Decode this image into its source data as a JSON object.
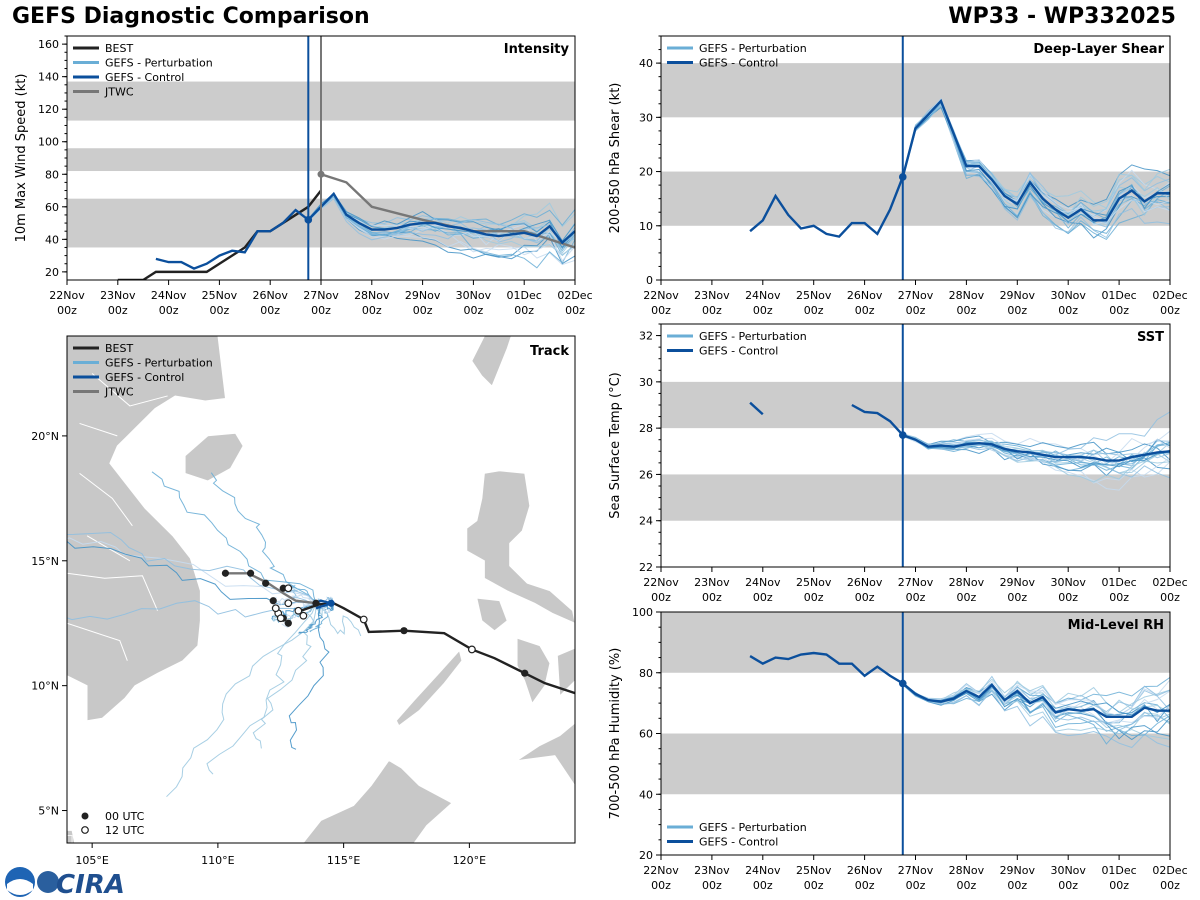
{
  "header": {
    "title_left": "GEFS Diagnostic Comparison",
    "title_right": "WP33 - WP332025"
  },
  "colors": {
    "best": "#222222",
    "perturbation": "#6aaed6",
    "control": "#0b4f9c",
    "jtwc": "#777777",
    "band": "#cccccc",
    "land": "#c8c8c8"
  },
  "time_axis": {
    "ticks": [
      {
        "day": 0,
        "line1": "22Nov",
        "line2": "00z"
      },
      {
        "day": 1,
        "line1": "23Nov",
        "line2": "00z"
      },
      {
        "day": 2,
        "line1": "24Nov",
        "line2": "00z"
      },
      {
        "day": 3,
        "line1": "25Nov",
        "line2": "00z"
      },
      {
        "day": 4,
        "line1": "26Nov",
        "line2": "00z"
      },
      {
        "day": 5,
        "line1": "27Nov",
        "line2": "00z"
      },
      {
        "day": 6,
        "line1": "28Nov",
        "line2": "00z"
      },
      {
        "day": 7,
        "line1": "29Nov",
        "line2": "00z"
      },
      {
        "day": 8,
        "line1": "30Nov",
        "line2": "00z"
      },
      {
        "day": 9,
        "line1": "01Dec",
        "line2": "00z"
      },
      {
        "day": 10,
        "line1": "02Dec",
        "line2": "00z"
      }
    ],
    "init_day": 4.75,
    "jtwc_day": 5.0
  },
  "chart_data": [
    {
      "id": "intensity",
      "type": "line",
      "title": "Intensity",
      "ylabel": "10m Max Wind Speed (kt)",
      "ylim": [
        15,
        165
      ],
      "yticks": [
        20,
        40,
        60,
        80,
        100,
        120,
        140,
        160
      ],
      "bands": [
        [
          35,
          65
        ],
        [
          82,
          96
        ],
        [
          113,
          137
        ]
      ],
      "legend": [
        "BEST",
        "GEFS - Perturbation",
        "GEFS - Control",
        "JTWC"
      ],
      "best": {
        "x": [
          1.0,
          1.25,
          1.5,
          1.75,
          2.0,
          2.25,
          2.5,
          2.75,
          3.0,
          3.25,
          3.5,
          3.75,
          4.0,
          4.25,
          4.5,
          4.75,
          5.0
        ],
        "y": [
          15,
          15,
          15,
          20,
          20,
          20,
          20,
          20,
          25,
          30,
          35,
          45,
          45,
          50,
          55,
          60,
          70
        ]
      },
      "jtwc": {
        "x": [
          5.0,
          5.5,
          6.0,
          7.0,
          8.0,
          9.0,
          10.0
        ],
        "y": [
          80,
          75,
          60,
          52,
          45,
          45,
          35
        ]
      },
      "control": {
        "x": [
          1.75,
          2.0,
          2.25,
          2.5,
          2.75,
          3.0,
          3.25,
          3.5,
          3.75,
          4.0,
          4.25,
          4.5,
          4.75,
          5.0,
          5.25,
          5.5,
          5.75,
          6.0,
          6.25,
          6.5,
          6.75,
          7.0,
          7.25,
          7.5,
          7.75,
          8.0,
          8.25,
          8.5,
          8.75,
          9.0,
          9.25,
          9.5,
          9.75,
          10.0
        ],
        "y": [
          28,
          26,
          26,
          22,
          25,
          30,
          33,
          32,
          45,
          45,
          50,
          58,
          52,
          60,
          68,
          55,
          50,
          46,
          46,
          47,
          49,
          50,
          50,
          48,
          47,
          45,
          43,
          42,
          43,
          44,
          42,
          48,
          38,
          45
        ]
      },
      "perturbation_count": 20,
      "perturbation_range": [
        20,
        68
      ]
    },
    {
      "id": "shear",
      "type": "line",
      "title": "Deep-Layer Shear",
      "ylabel": "200-850 hPa Shear (kt)",
      "ylim": [
        0,
        45
      ],
      "yticks": [
        0,
        10,
        20,
        30,
        40
      ],
      "bands": [
        [
          10,
          20
        ],
        [
          30,
          40
        ]
      ],
      "legend": [
        "GEFS - Perturbation",
        "GEFS - Control"
      ],
      "control": {
        "x": [
          1.75,
          2.0,
          2.25,
          2.5,
          2.75,
          3.0,
          3.25,
          3.5,
          3.75,
          4.0,
          4.25,
          4.5,
          4.75,
          5.0,
          5.25,
          5.5,
          5.75,
          6.0,
          6.25,
          6.5,
          6.75,
          7.0,
          7.25,
          7.5,
          7.75,
          8.0,
          8.25,
          8.5,
          8.75,
          9.0,
          9.25,
          9.5,
          9.75,
          10.0
        ],
        "y": [
          9,
          11,
          15.5,
          12,
          9.5,
          10,
          8.5,
          8,
          10.5,
          10.5,
          8.5,
          13,
          19,
          28,
          30.5,
          33,
          27,
          21,
          21,
          18.5,
          15.5,
          14,
          18,
          15,
          13,
          11.5,
          13,
          11,
          11,
          15,
          16.5,
          14.5,
          16,
          16
        ]
      },
      "perturbation_count": 20
    },
    {
      "id": "sst",
      "type": "line",
      "title": "SST",
      "ylabel": "Sea Surface Temp (°C)",
      "ylim": [
        22,
        32.5
      ],
      "yticks": [
        22,
        24,
        26,
        28,
        30,
        32
      ],
      "bands": [
        [
          24,
          26
        ],
        [
          28,
          30
        ]
      ],
      "legend": [
        "GEFS - Perturbation",
        "GEFS - Control"
      ],
      "control_pre1": {
        "x": [
          1.75,
          2.0
        ],
        "y": [
          29.1,
          28.6
        ]
      },
      "control": {
        "x": [
          3.75,
          4.0,
          4.25,
          4.5,
          4.75,
          5.0,
          5.25,
          5.5,
          5.75,
          6.0,
          6.25,
          6.5,
          6.75,
          7.0,
          7.25,
          7.5,
          7.75,
          8.0,
          8.25,
          8.5,
          8.75,
          9.0,
          9.25,
          9.5,
          9.75,
          10.0
        ],
        "y": [
          29.0,
          28.7,
          28.65,
          28.3,
          27.7,
          27.5,
          27.2,
          27.25,
          27.2,
          27.3,
          27.35,
          27.3,
          27.1,
          27.0,
          26.95,
          26.85,
          26.75,
          26.75,
          26.75,
          26.7,
          26.6,
          26.6,
          26.75,
          26.85,
          26.95,
          27.0
        ]
      },
      "perturbation_count": 20
    },
    {
      "id": "rh",
      "type": "line",
      "title": "Mid-Level RH",
      "ylabel": "700-500 hPa Humidity (%)",
      "ylim": [
        20,
        100
      ],
      "yticks": [
        20,
        40,
        60,
        80,
        100
      ],
      "bands": [
        [
          40,
          60
        ],
        [
          80,
          100
        ]
      ],
      "legend": [
        "GEFS - Perturbation",
        "GEFS - Control"
      ],
      "control": {
        "x": [
          1.75,
          2.0,
          2.25,
          2.5,
          2.75,
          3.0,
          3.25,
          3.5,
          3.75,
          4.0,
          4.25,
          4.5,
          4.75,
          5.0,
          5.25,
          5.5,
          5.75,
          6.0,
          6.25,
          6.5,
          6.75,
          7.0,
          7.25,
          7.5,
          7.75,
          8.0,
          8.25,
          8.5,
          8.75,
          9.0,
          9.25,
          9.5,
          9.75,
          10.0
        ],
        "y": [
          85.5,
          83,
          85,
          84.5,
          86,
          86.5,
          86,
          83,
          83,
          79,
          82,
          79,
          76.5,
          73,
          71,
          70.5,
          71.5,
          74,
          72,
          76,
          71,
          74,
          70,
          72,
          67,
          68,
          67.5,
          68,
          65.5,
          65.5,
          65.5,
          68.5,
          67.5,
          67.5
        ]
      },
      "perturbation_count": 20
    },
    {
      "id": "track",
      "type": "scatter",
      "title": "Track",
      "xlim": [
        104,
        124.2
      ],
      "ylim": [
        3.7,
        24
      ],
      "xticks": [
        {
          "v": 105,
          "label": "105°E"
        },
        {
          "v": 110,
          "label": "110°E"
        },
        {
          "v": 115,
          "label": "115°E"
        },
        {
          "v": 120,
          "label": "120°E"
        }
      ],
      "yticks": [
        {
          "v": 5,
          "label": "5°N"
        },
        {
          "v": 10,
          "label": "10°N"
        },
        {
          "v": 15,
          "label": "15°N"
        },
        {
          "v": 20,
          "label": "20°N"
        }
      ],
      "legend": [
        "BEST",
        "GEFS - Perturbation",
        "GEFS - Control",
        "JTWC"
      ],
      "marker_legend": [
        "00 UTC",
        "12 UTC"
      ],
      "best_track": {
        "lon": [
          124.2,
          123.0,
          122.2,
          121.0,
          120.1,
          119.0,
          117.4,
          116.0,
          115.8,
          115.0,
          114.6,
          114.0,
          113.3
        ],
        "lat": [
          9.7,
          10.1,
          10.5,
          11.1,
          11.45,
          12.1,
          12.2,
          12.15,
          12.65,
          13.1,
          13.3,
          13.25,
          13.0
        ]
      },
      "best_00": {
        "lon": [
          122.2,
          117.4,
          113.9,
          112.6,
          112.8,
          112.6,
          112.2,
          111.9,
          111.3,
          110.3
        ],
        "lat": [
          10.5,
          12.2,
          13.3,
          12.7,
          12.5,
          13.9,
          13.4,
          14.1,
          14.5,
          14.5
        ]
      },
      "best_12": {
        "lon": [
          120.1,
          115.8,
          113.4,
          113.2,
          112.4,
          112.8,
          112.3,
          112.5,
          112.8
        ],
        "lat": [
          11.45,
          12.65,
          12.8,
          13.0,
          12.9,
          13.3,
          13.1,
          12.7,
          13.9
        ]
      },
      "control_track": {
        "lon": [
          113.8,
          114.1,
          114.5,
          113.9
        ],
        "lat": [
          13.3,
          13.4,
          13.3,
          13.1
        ]
      },
      "jtwc_track": {
        "lon": [
          110.3,
          111.2,
          112.0,
          112.6,
          113.1,
          113.9
        ],
        "lat": [
          14.5,
          14.5,
          14.1,
          13.7,
          13.4,
          13.3
        ]
      }
    }
  ],
  "logo": {
    "label": "CIRA"
  }
}
